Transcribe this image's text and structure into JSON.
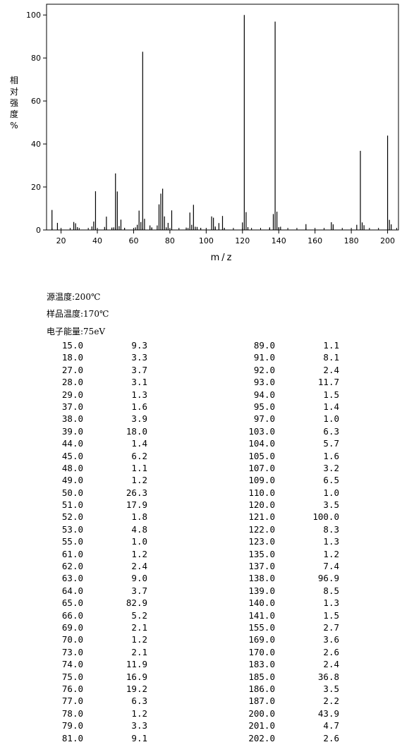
{
  "chart_data": {
    "type": "bar",
    "xlabel": "m/z",
    "ylabel": "相对强度%",
    "xlim": [
      12,
      206
    ],
    "ylim": [
      0,
      105
    ],
    "x_ticks": [
      20,
      40,
      60,
      80,
      100,
      120,
      140,
      160,
      180,
      200
    ],
    "y_ticks": [
      0,
      20,
      40,
      60,
      80,
      100
    ],
    "grid": false,
    "x": [
      15,
      18,
      27,
      28,
      29,
      37,
      38,
      39,
      44,
      45,
      48,
      49,
      50,
      51,
      52,
      53,
      55,
      61,
      62,
      63,
      64,
      65,
      66,
      69,
      70,
      73,
      74,
      75,
      76,
      77,
      78,
      79,
      81,
      89,
      91,
      92,
      93,
      94,
      95,
      97,
      103,
      104,
      105,
      107,
      109,
      110,
      120,
      121,
      122,
      123,
      135,
      137,
      138,
      139,
      140,
      141,
      155,
      169,
      170,
      183,
      185,
      186,
      187,
      200,
      201,
      202
    ],
    "values": [
      9.3,
      3.3,
      3.7,
      3.1,
      1.3,
      1.6,
      3.9,
      18.0,
      1.4,
      6.2,
      1.1,
      1.2,
      26.3,
      17.9,
      1.8,
      4.8,
      1.0,
      1.2,
      2.4,
      9.0,
      3.7,
      82.9,
      5.2,
      2.1,
      1.2,
      2.1,
      11.9,
      16.9,
      19.2,
      6.3,
      1.2,
      3.3,
      9.1,
      1.1,
      8.1,
      2.4,
      11.7,
      1.5,
      1.4,
      1.0,
      6.3,
      5.7,
      1.6,
      3.2,
      6.5,
      1.0,
      3.5,
      100.0,
      8.3,
      1.3,
      1.2,
      7.4,
      96.9,
      8.5,
      1.3,
      1.5,
      2.7,
      3.6,
      2.6,
      2.4,
      36.8,
      3.5,
      2.2,
      43.9,
      4.7,
      2.6
    ]
  },
  "conditions": {
    "source_temp": "源温度:200℃",
    "sample_temp": "样品温度:170℃",
    "electron_energy": "电子能量:75eV"
  },
  "peak_table": {
    "left": [
      [
        "15.0",
        "9.3"
      ],
      [
        "18.0",
        "3.3"
      ],
      [
        "27.0",
        "3.7"
      ],
      [
        "28.0",
        "3.1"
      ],
      [
        "29.0",
        "1.3"
      ],
      [
        "37.0",
        "1.6"
      ],
      [
        "38.0",
        "3.9"
      ],
      [
        "39.0",
        "18.0"
      ],
      [
        "44.0",
        "1.4"
      ],
      [
        "45.0",
        "6.2"
      ],
      [
        "48.0",
        "1.1"
      ],
      [
        "49.0",
        "1.2"
      ],
      [
        "50.0",
        "26.3"
      ],
      [
        "51.0",
        "17.9"
      ],
      [
        "52.0",
        "1.8"
      ],
      [
        "53.0",
        "4.8"
      ],
      [
        "55.0",
        "1.0"
      ],
      [
        "61.0",
        "1.2"
      ],
      [
        "62.0",
        "2.4"
      ],
      [
        "63.0",
        "9.0"
      ],
      [
        "64.0",
        "3.7"
      ],
      [
        "65.0",
        "82.9"
      ],
      [
        "66.0",
        "5.2"
      ],
      [
        "69.0",
        "2.1"
      ],
      [
        "70.0",
        "1.2"
      ],
      [
        "73.0",
        "2.1"
      ],
      [
        "74.0",
        "11.9"
      ],
      [
        "75.0",
        "16.9"
      ],
      [
        "76.0",
        "19.2"
      ],
      [
        "77.0",
        "6.3"
      ],
      [
        "78.0",
        "1.2"
      ],
      [
        "79.0",
        "3.3"
      ],
      [
        "81.0",
        "9.1"
      ]
    ],
    "right": [
      [
        "89.0",
        "1.1"
      ],
      [
        "91.0",
        "8.1"
      ],
      [
        "92.0",
        "2.4"
      ],
      [
        "93.0",
        "11.7"
      ],
      [
        "94.0",
        "1.5"
      ],
      [
        "95.0",
        "1.4"
      ],
      [
        "97.0",
        "1.0"
      ],
      [
        "103.0",
        "6.3"
      ],
      [
        "104.0",
        "5.7"
      ],
      [
        "105.0",
        "1.6"
      ],
      [
        "107.0",
        "3.2"
      ],
      [
        "109.0",
        "6.5"
      ],
      [
        "110.0",
        "1.0"
      ],
      [
        "120.0",
        "3.5"
      ],
      [
        "121.0",
        "100.0"
      ],
      [
        "122.0",
        "8.3"
      ],
      [
        "123.0",
        "1.3"
      ],
      [
        "135.0",
        "1.2"
      ],
      [
        "137.0",
        "7.4"
      ],
      [
        "138.0",
        "96.9"
      ],
      [
        "139.0",
        "8.5"
      ],
      [
        "140.0",
        "1.3"
      ],
      [
        "141.0",
        "1.5"
      ],
      [
        "155.0",
        "2.7"
      ],
      [
        "169.0",
        "3.6"
      ],
      [
        "170.0",
        "2.6"
      ],
      [
        "183.0",
        "2.4"
      ],
      [
        "185.0",
        "36.8"
      ],
      [
        "186.0",
        "3.5"
      ],
      [
        "187.0",
        "2.2"
      ],
      [
        "200.0",
        "43.9"
      ],
      [
        "201.0",
        "4.7"
      ],
      [
        "202.0",
        "2.6"
      ]
    ]
  }
}
